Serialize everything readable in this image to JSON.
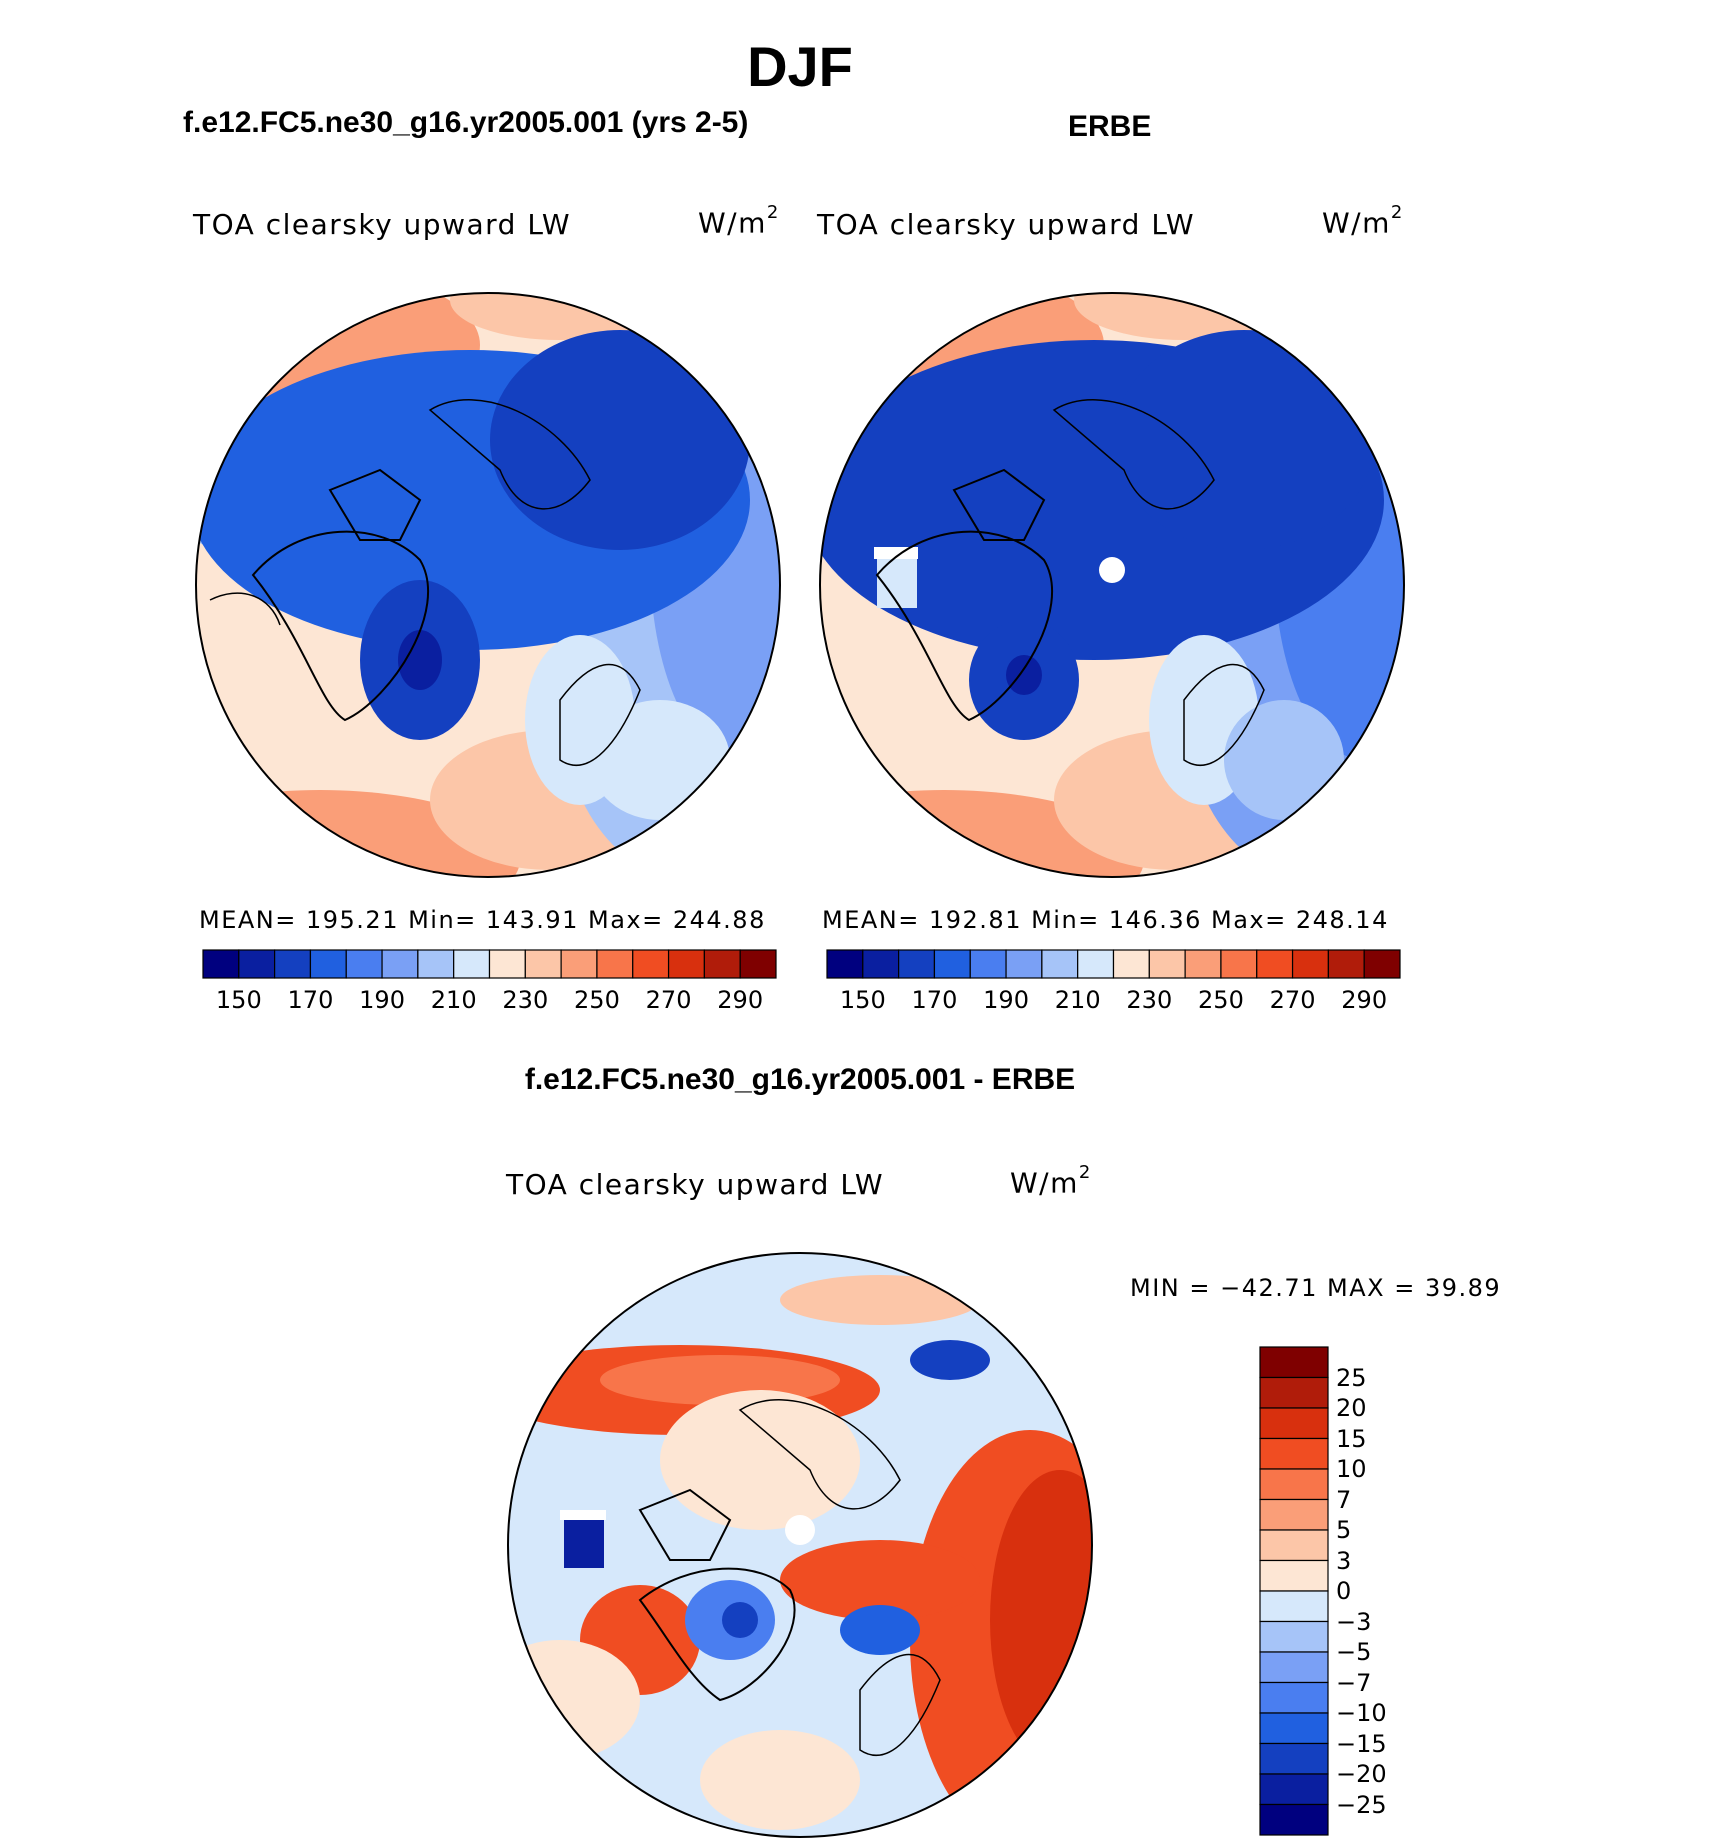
{
  "title": "DJF",
  "panels": [
    {
      "case": "f.e12.FC5.ne30_g16.yr2005.001 (yrs 2-5)",
      "variable": "TOA clearsky upward LW",
      "units_base": "W/m",
      "units_sup": "2",
      "stats": "MEAN=  195.21   Min=  143.91   Max=  244.88",
      "colorbar_labels": [
        "150",
        "170",
        "190",
        "210",
        "230",
        "250",
        "270",
        "290"
      ],
      "colorbar_colors": [
        "#00007f",
        "#0a1fa0",
        "#1440c0",
        "#2060e0",
        "#4a7ef0",
        "#7aa0f5",
        "#a6c4f8",
        "#d6e8fb",
        "#fde6d4",
        "#fcc6a8",
        "#fa9e78",
        "#f8754a",
        "#f04d22",
        "#d8300e",
        "#b01c0a",
        "#7f0000"
      ]
    },
    {
      "case": "ERBE",
      "variable": "TOA clearsky upward LW",
      "units_base": "W/m",
      "units_sup": "2",
      "stats": "MEAN=  192.81   Min=  146.36   Max=  248.14",
      "colorbar_labels": [
        "150",
        "170",
        "190",
        "210",
        "230",
        "250",
        "270",
        "290"
      ],
      "colorbar_colors": [
        "#00007f",
        "#0a1fa0",
        "#1440c0",
        "#2060e0",
        "#4a7ef0",
        "#7aa0f5",
        "#a6c4f8",
        "#d6e8fb",
        "#fde6d4",
        "#fcc6a8",
        "#fa9e78",
        "#f8754a",
        "#f04d22",
        "#d8300e",
        "#b01c0a",
        "#7f0000"
      ]
    }
  ],
  "difference": {
    "title": "f.e12.FC5.ne30_g16.yr2005.001 - ERBE",
    "variable": "TOA clearsky upward LW",
    "units_base": "W/m",
    "units_sup": "2",
    "stats": "MIN = −42.71  MAX =   39.89",
    "colorbar_labels": [
      "25",
      "20",
      "15",
      "10",
      "7",
      "5",
      "3",
      "0",
      "−3",
      "−5",
      "−7",
      "−10",
      "−15",
      "−20",
      "−25"
    ],
    "colorbar_colors": [
      "#7f0000",
      "#b01c0a",
      "#d8300e",
      "#f04d22",
      "#f8754a",
      "#fa9e78",
      "#fcc6a8",
      "#fde6d4",
      "#d6e8fb",
      "#a6c4f8",
      "#7aa0f5",
      "#4a7ef0",
      "#2060e0",
      "#1440c0",
      "#0a1fa0",
      "#00007f"
    ]
  }
}
